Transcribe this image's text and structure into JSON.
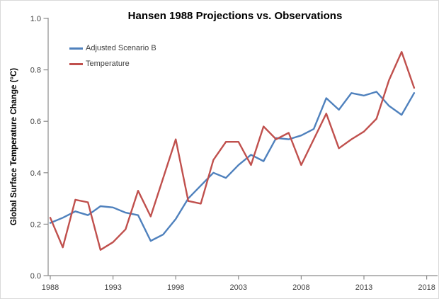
{
  "chart_data": {
    "type": "line",
    "title": "Hansen 1988 Projections vs. Observations",
    "xlabel": "",
    "ylabel": "Global Surface Temperature Change (°C)",
    "x": [
      1988,
      1989,
      1990,
      1991,
      1992,
      1993,
      1994,
      1995,
      1996,
      1997,
      1998,
      1999,
      2000,
      2001,
      2002,
      2003,
      2004,
      2005,
      2006,
      2007,
      2008,
      2009,
      2010,
      2011,
      2012,
      2013,
      2014,
      2015,
      2016,
      2017
    ],
    "series": [
      {
        "name": "Adjusted Scenario B",
        "color": "#4F81BD",
        "values": [
          0.205,
          0.225,
          0.25,
          0.235,
          0.27,
          0.265,
          0.245,
          0.235,
          0.135,
          0.16,
          0.22,
          0.3,
          0.35,
          0.4,
          0.38,
          0.43,
          0.47,
          0.445,
          0.535,
          0.53,
          0.545,
          0.57,
          0.69,
          0.645,
          0.71,
          0.7,
          0.715,
          0.66,
          0.625,
          0.71
        ]
      },
      {
        "name": "Temperature",
        "color": "#C0504D",
        "values": [
          0.225,
          0.11,
          0.295,
          0.285,
          0.1,
          0.13,
          0.18,
          0.33,
          0.23,
          0.38,
          0.53,
          0.29,
          0.28,
          0.45,
          0.52,
          0.52,
          0.43,
          0.58,
          0.53,
          0.555,
          0.43,
          0.53,
          0.63,
          0.495,
          0.53,
          0.56,
          0.61,
          0.76,
          0.87,
          0.73
        ]
      }
    ],
    "xlim": [
      1988,
      2018
    ],
    "ylim": [
      0.0,
      1.0
    ],
    "x_ticks": [
      "1988",
      "1993",
      "1998",
      "2003",
      "2008",
      "2013",
      "2018"
    ],
    "y_ticks": [
      "0.0",
      "0.2",
      "0.4",
      "0.6",
      "0.8",
      "1.0"
    ],
    "grid": false,
    "legend_position": "upper-left-inside"
  },
  "colors": {
    "axis": "#8C8C8C",
    "tick_label": "#404040",
    "title": "#000000",
    "background": "#FFFFFF"
  }
}
